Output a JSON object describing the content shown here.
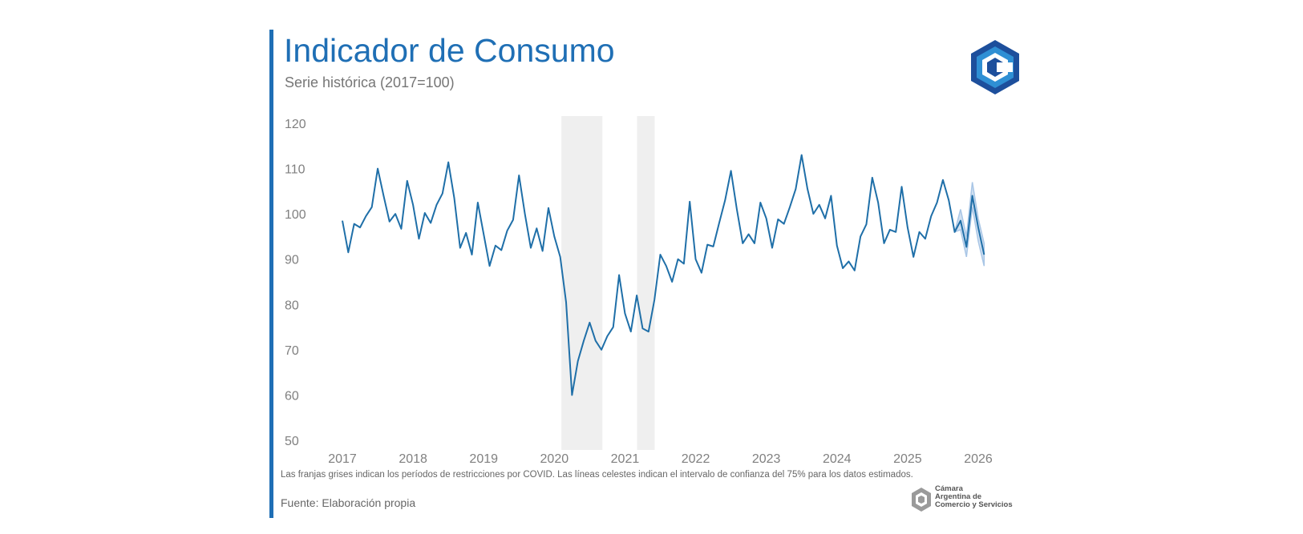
{
  "header": {
    "title": "Indicador de Consumo",
    "subtitle": "Serie histórica (2017=100)"
  },
  "footer": {
    "note": "Las franjas grises indican los períodos de restricciones por COVID. Las líneas celestes indican el intervalo de confianza del 75% para los datos estimados.",
    "source": "Fuente: Elaboración propia",
    "org_line1": "Cámara",
    "org_line2": "Argentina de",
    "org_line3": "Comercio y Servicios"
  },
  "colors": {
    "accent": "#1f6fb5",
    "line": "#1f6fa8",
    "band": "#a9c6e6",
    "shade": "#efefef"
  },
  "chart_data": {
    "type": "line",
    "title": "Indicador de Consumo",
    "subtitle": "Serie histórica (2017=100)",
    "xlabel": "",
    "ylabel": "",
    "ylim": [
      50,
      120
    ],
    "yticks": [
      120,
      110,
      100,
      90,
      80,
      70,
      60,
      50
    ],
    "xticks": [
      "2017",
      "2018",
      "2019",
      "2020",
      "2021",
      "2022",
      "2023",
      "2024",
      "2025",
      "2026"
    ],
    "x_start": 2017.0,
    "x_step": 0.08333,
    "series": [
      {
        "name": "Indicador de Consumo",
        "values": [
          98.5,
          91.5,
          97.8,
          97.0,
          99.5,
          101.5,
          110.0,
          104.0,
          98.3,
          100.0,
          96.7,
          107.3,
          102.0,
          94.5,
          100.2,
          98.0,
          102.0,
          104.5,
          111.4,
          103.5,
          92.5,
          95.8,
          91.0,
          102.5,
          95.5,
          88.5,
          93.0,
          92.0,
          96.3,
          98.7,
          108.5,
          100.0,
          92.5,
          96.8,
          91.8,
          101.3,
          95.0,
          90.5,
          80.5,
          60.0,
          67.5,
          72.0,
          76.0,
          72.0,
          70.0,
          73.0,
          75.0,
          86.5,
          78.0,
          74.0,
          82.0,
          74.7,
          74.0,
          81.0,
          91.0,
          88.5,
          85.0,
          90.0,
          89.0,
          102.7,
          90.0,
          87.0,
          93.2,
          92.8,
          98.0,
          103.0,
          109.5,
          101.0,
          93.5,
          95.5,
          93.5,
          102.5,
          99.0,
          92.5,
          98.8,
          97.8,
          101.5,
          105.5,
          113.0,
          105.5,
          100.0,
          102.0,
          99.0,
          104.0,
          93.0,
          88.0,
          89.5,
          87.5,
          95.0,
          97.7,
          108.0,
          102.5,
          93.5,
          96.5,
          96.0,
          106.0,
          97.0,
          90.5,
          96.0,
          94.5,
          99.5,
          102.5,
          107.5,
          103.0,
          96.0,
          98.5,
          92.7,
          104.0,
          97.0,
          91.0
        ]
      }
    ],
    "confidence_band_75": {
      "start_index": 104,
      "upper": [
        96.0,
        101.0,
        95.0,
        107.0,
        99.0,
        93.5
      ],
      "lower": [
        96.0,
        96.5,
        90.5,
        101.5,
        94.0,
        88.5
      ]
    },
    "shaded_periods": [
      {
        "label": "COVID",
        "from": 2020.1,
        "to": 2020.68
      },
      {
        "label": "COVID",
        "from": 2021.17,
        "to": 2021.42
      }
    ]
  }
}
